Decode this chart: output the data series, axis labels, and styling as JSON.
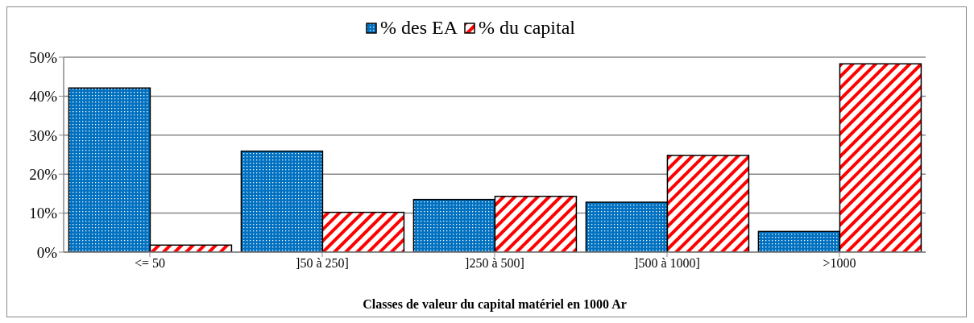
{
  "chart_data": {
    "type": "bar",
    "xlabel": "Classes de valeur du capital matériel en 1000 Ar",
    "categories": [
      "<= 50",
      "]50 à 250]",
      "]250 à 500]",
      "]500 à 1000]",
      ">1000"
    ],
    "series": [
      {
        "name": "% des EA",
        "color": "#0070c0",
        "values": [
          42.1,
          25.9,
          13.5,
          12.8,
          5.3
        ]
      },
      {
        "name": "% du capital",
        "color": "#ff0000",
        "values": [
          1.8,
          10.2,
          14.3,
          24.8,
          48.3
        ]
      }
    ],
    "ylim": [
      0,
      50
    ],
    "yticks": [
      {
        "value": 0,
        "label": "0%"
      },
      {
        "value": 10,
        "label": "10%"
      },
      {
        "value": 20,
        "label": "20%"
      },
      {
        "value": 30,
        "label": "30%"
      },
      {
        "value": 40,
        "label": "40%"
      },
      {
        "value": 50,
        "label": "50%"
      }
    ],
    "grid": "y",
    "legend": "top"
  }
}
